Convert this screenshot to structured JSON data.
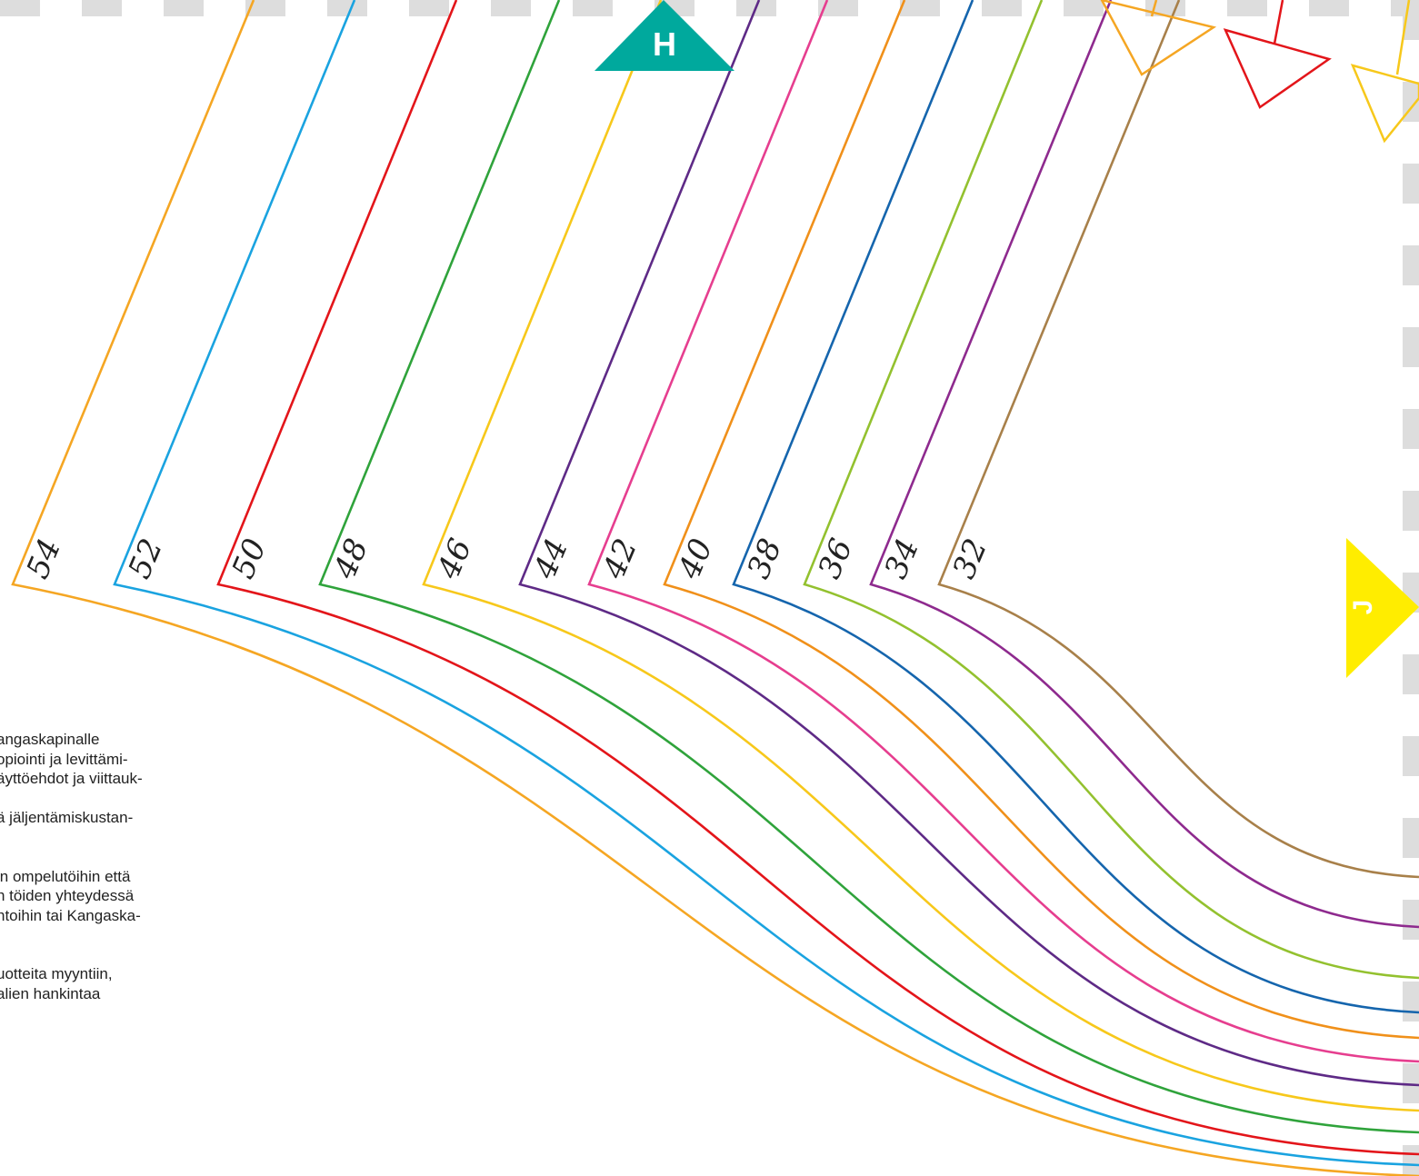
{
  "markers": [
    {
      "label": "H",
      "color": "#00a99d"
    },
    {
      "label": "J",
      "color": "#ffed00"
    }
  ],
  "sizes": [
    {
      "label": "54",
      "color": "#f5a623"
    },
    {
      "label": "52",
      "color": "#1aa3e0"
    },
    {
      "label": "50",
      "color": "#e3151a"
    },
    {
      "label": "48",
      "color": "#2fa33b"
    },
    {
      "label": "46",
      "color": "#f7c81b"
    },
    {
      "label": "44",
      "color": "#5e2a86"
    },
    {
      "label": "42",
      "color": "#e63e8f"
    },
    {
      "label": "40",
      "color": "#f0901a"
    },
    {
      "label": "38",
      "color": "#1565ad"
    },
    {
      "label": "36",
      "color": "#93c12f"
    },
    {
      "label": "34",
      "color": "#8e2a8e"
    },
    {
      "label": "32",
      "color": "#a8804a"
    }
  ],
  "notes": [
    "angaskapinalle",
    "opiointi ja levittämi-",
    "äyttöehdot ja viittauk-",
    "",
    "ä jäljentämiskustan-",
    "",
    "",
    "in ompelutöihin että",
    "n töiden yhteydessä",
    "ntoihin tai Kangaska-",
    "",
    "",
    "uotteita myyntiin,",
    "alien hankintaa"
  ],
  "colors": {
    "border_dash": "#dddddd",
    "notch_orange": "#f5a623",
    "notch_red": "#e3151a",
    "notch_yellow": "#f7c81b"
  }
}
